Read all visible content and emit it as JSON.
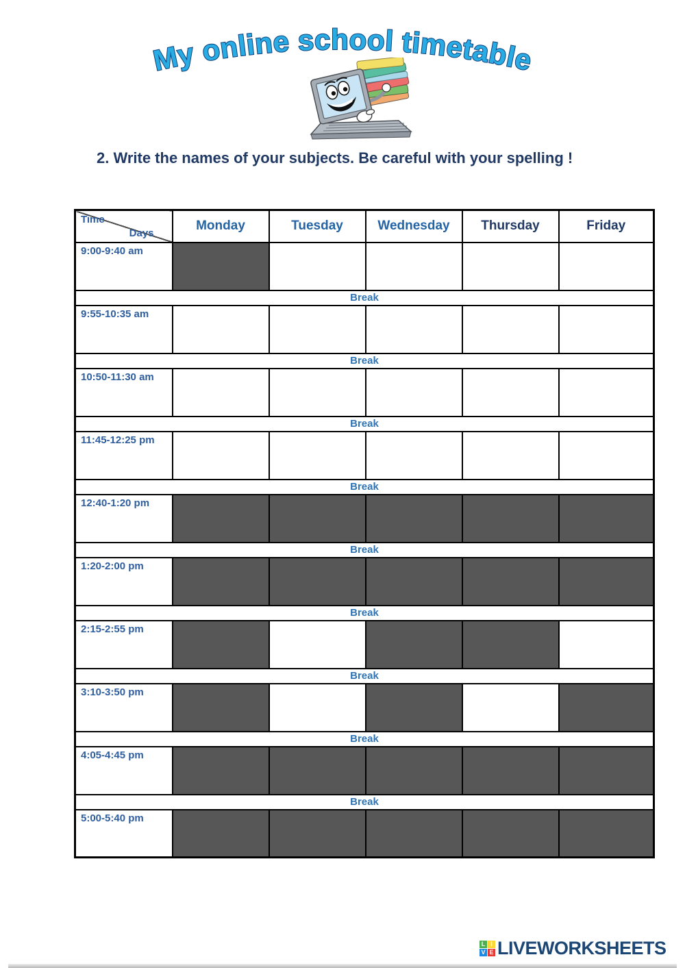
{
  "page": {
    "title": "My online school timetable",
    "instruction": "2. Write the names of your subjects. Be careful with your spelling !",
    "illustration": "laptop-character-holding-stack-of-books"
  },
  "colors": {
    "title_fill": "#29ACE3",
    "title_outline": "#0E3F7C",
    "instruction_text": "#1F3864",
    "time_label_text": "#2E5E9E",
    "break_text": "#2E74B5",
    "blocked_cell": "#575757",
    "table_border": "#000000"
  },
  "table": {
    "corner": {
      "top_label": "Time",
      "bottom_label": "Days"
    },
    "days": [
      {
        "label": "Monday",
        "color": "#2464A4"
      },
      {
        "label": "Tuesday",
        "color": "#2464A4"
      },
      {
        "label": "Wednesday",
        "color": "#2464A4"
      },
      {
        "label": "Thursday",
        "color": "#1F3864"
      },
      {
        "label": "Friday",
        "color": "#1F3864"
      }
    ],
    "break_label": "Break",
    "rows": [
      {
        "time": "9:00-9:40 am",
        "cells": [
          "blocked",
          "input",
          "input",
          "input",
          "input"
        ]
      },
      {
        "time": "9:55-10:35 am",
        "cells": [
          "input",
          "input",
          "input",
          "input",
          "input"
        ]
      },
      {
        "time": "10:50-11:30 am",
        "cells": [
          "input",
          "input",
          "input",
          "input",
          "input"
        ]
      },
      {
        "time": "11:45-12:25 pm",
        "cells": [
          "input",
          "input",
          "input",
          "input",
          "input"
        ]
      },
      {
        "time": "12:40-1:20 pm",
        "cells": [
          "blocked",
          "blocked",
          "blocked",
          "blocked",
          "blocked"
        ]
      },
      {
        "time": "1:20-2:00 pm",
        "cells": [
          "blocked",
          "blocked",
          "blocked",
          "blocked",
          "blocked"
        ]
      },
      {
        "time": "2:15-2:55 pm",
        "cells": [
          "blocked",
          "input",
          "blocked",
          "blocked",
          "input"
        ]
      },
      {
        "time": "3:10-3:50 pm",
        "cells": [
          "blocked",
          "input",
          "blocked",
          "input",
          "blocked"
        ]
      },
      {
        "time": "4:05-4:45 pm",
        "cells": [
          "blocked",
          "blocked",
          "blocked",
          "blocked",
          "blocked"
        ]
      },
      {
        "time": "5:00-5:40 pm",
        "cells": [
          "blocked",
          "blocked",
          "blocked",
          "blocked",
          "blocked"
        ]
      }
    ]
  },
  "footer": {
    "logo_text": "LIVEWORKSHEETS",
    "logo_text_color": "#1B4674",
    "logo_squares": [
      {
        "letter": "L",
        "color": "#4CAF50"
      },
      {
        "letter": "I",
        "color": "#FDD835"
      },
      {
        "letter": "V",
        "color": "#1E88E5"
      },
      {
        "letter": "E",
        "color": "#E53935"
      }
    ]
  }
}
